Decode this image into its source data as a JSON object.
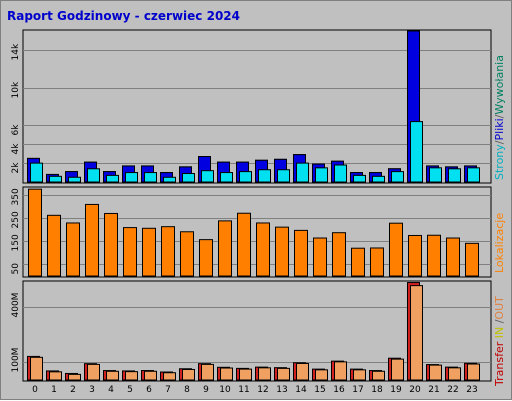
{
  "title": "Raport Godzinowy -  czerwiec 2024",
  "legend": {
    "hits_labels": [
      {
        "text": "Strony",
        "color": "#00b0c0"
      },
      {
        "text": "/",
        "color": "#606060"
      },
      {
        "text": "Pliki",
        "color": "#0000d0"
      },
      {
        "text": "/",
        "color": "#606060"
      },
      {
        "text": "Wywołania",
        "color": "#008060"
      }
    ],
    "sites_label": {
      "text": "Lokalizacje",
      "color": "#ff8000"
    },
    "transfer_labels": [
      {
        "text": "Transfer",
        "color": "#c00000"
      },
      {
        "text": " IN",
        "color": "#c0c000"
      },
      {
        "text": " /",
        "color": "#606060"
      },
      {
        "text": "OUT",
        "color": "#e08040"
      }
    ]
  },
  "colors": {
    "hits": "#00805c",
    "files": "#0000e0",
    "pages": "#00e0f0",
    "sites": "#ff8000",
    "transfer_in": "#d02020",
    "transfer_out": "#f0a060",
    "panel_bg": "#c0c0c0"
  },
  "chart_data": [
    {
      "type": "bar",
      "title": "Raport Godzinowy -  czerwiec 2024",
      "categories": [
        "0",
        "1",
        "2",
        "3",
        "4",
        "5",
        "6",
        "7",
        "8",
        "9",
        "10",
        "11",
        "12",
        "13",
        "14",
        "15",
        "16",
        "17",
        "18",
        "19",
        "20",
        "21",
        "22",
        "23"
      ],
      "ylim": [
        0,
        16000
      ],
      "y_ticks": [
        2000,
        4000,
        6000,
        10000,
        14000
      ],
      "y_tick_labels": [
        "2k",
        "4k",
        "6k",
        "10k",
        "14k"
      ],
      "grid": true,
      "series": [
        {
          "name": "Wywołania",
          "values": [
            2500,
            800,
            1100,
            2100,
            1100,
            1700,
            1700,
            1000,
            1600,
            2700,
            2100,
            2100,
            2300,
            2400,
            2900,
            1900,
            2200,
            1000,
            1000,
            1400,
            16000,
            1700,
            1600,
            1700
          ]
        },
        {
          "name": "Pliki",
          "values": [
            2500,
            800,
            1100,
            2100,
            1100,
            1700,
            1700,
            1000,
            1600,
            2700,
            2100,
            2100,
            2300,
            2400,
            2900,
            1900,
            2200,
            1000,
            1000,
            1400,
            16000,
            1700,
            1600,
            1700
          ]
        },
        {
          "name": "Strony",
          "values": [
            2000,
            600,
            500,
            1400,
            700,
            1000,
            1000,
            500,
            900,
            1200,
            1000,
            1100,
            1300,
            1300,
            2000,
            1500,
            1800,
            700,
            600,
            1100,
            6400,
            1500,
            1400,
            1500
          ]
        }
      ]
    },
    {
      "type": "bar",
      "categories": [
        "0",
        "1",
        "2",
        "3",
        "4",
        "5",
        "6",
        "7",
        "8",
        "9",
        "10",
        "11",
        "12",
        "13",
        "14",
        "15",
        "16",
        "17",
        "18",
        "19",
        "20",
        "21",
        "22",
        "23"
      ],
      "ylim": [
        0,
        380
      ],
      "y_ticks": [
        50,
        150,
        250,
        350
      ],
      "y_tick_labels": [
        "50",
        "150",
        "250",
        "350"
      ],
      "grid": true,
      "series": [
        {
          "name": "Lokalizacje",
          "values": [
            375,
            262,
            229,
            309,
            270,
            209,
            206,
            213,
            191,
            157,
            238,
            271,
            229,
            211,
            197,
            164,
            187,
            120,
            121,
            228,
            175,
            176,
            164,
            141
          ]
        }
      ]
    },
    {
      "type": "bar",
      "categories": [
        "0",
        "1",
        "2",
        "3",
        "4",
        "5",
        "6",
        "7",
        "8",
        "9",
        "10",
        "11",
        "12",
        "13",
        "14",
        "15",
        "16",
        "17",
        "18",
        "19",
        "20",
        "21",
        "22",
        "23"
      ],
      "ylim": [
        0,
        540
      ],
      "y_ticks": [
        100,
        400
      ],
      "y_tick_labels": [
        "100M",
        "400M"
      ],
      "grid": true,
      "series": [
        {
          "name": "IN",
          "values": [
            130,
            50,
            36,
            90,
            52,
            50,
            52,
            44,
            62,
            90,
            70,
            64,
            71,
            68,
            95,
            60,
            104,
            60,
            52,
            120,
            537,
            85,
            71,
            92
          ]
        },
        {
          "name": "OUT",
          "values": [
            125,
            45,
            31,
            86,
            48,
            46,
            48,
            40,
            58,
            86,
            66,
            60,
            67,
            64,
            91,
            56,
            100,
            56,
            48,
            115,
            520,
            82,
            67,
            88
          ]
        }
      ]
    }
  ]
}
